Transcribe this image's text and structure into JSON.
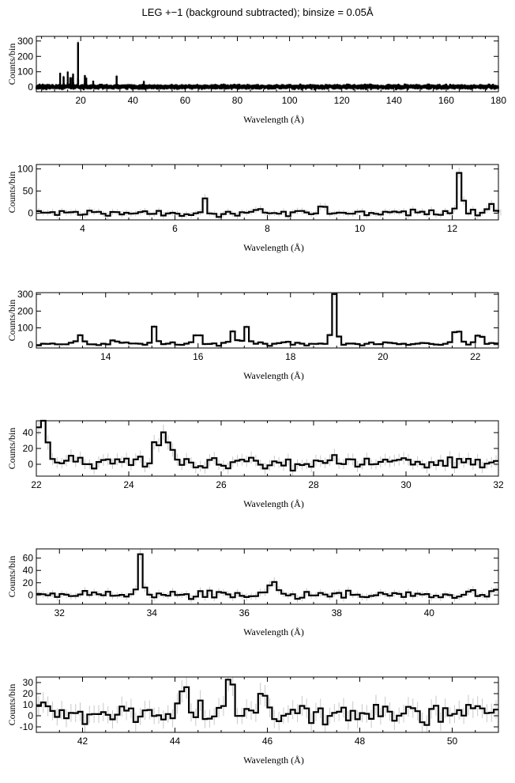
{
  "title": "LEG +−1 (background subtracted); binsize = 0.05Å",
  "chart_data": [
    {
      "type": "line",
      "title": "",
      "xlabel": "Wavelength (Å)",
      "ylabel": "Counts/bin",
      "xlim": [
        3,
        180
      ],
      "ylim": [
        -30,
        330
      ],
      "xticks": [
        20,
        40,
        60,
        80,
        100,
        120,
        140,
        160,
        180
      ],
      "yticks": [
        0,
        100,
        200,
        300
      ],
      "binsize": 0.05,
      "baseline": 2,
      "noise": 7,
      "peaks": [
        [
          12.13,
          85
        ],
        [
          13.45,
          60
        ],
        [
          15.02,
          95
        ],
        [
          16.0,
          55
        ],
        [
          16.78,
          55
        ],
        [
          17.07,
          90
        ],
        [
          18.97,
          290
        ],
        [
          21.6,
          70
        ],
        [
          22.1,
          45
        ],
        [
          24.78,
          28
        ],
        [
          33.75,
          60
        ],
        [
          44.2,
          30
        ]
      ],
      "series": [
        {
          "values_note": ""
        }
      ]
    },
    {
      "type": "line",
      "title": "",
      "xlabel": "Wavelength (Å)",
      "ylabel": "Counts/bin",
      "xlim": [
        3,
        13
      ],
      "ylim": [
        -15,
        110
      ],
      "xticks": [
        4,
        6,
        8,
        10,
        12
      ],
      "yticks": [
        0,
        50,
        100
      ],
      "binsize": 0.1,
      "baseline": 1,
      "noise": 5,
      "peaks": [
        [
          6.65,
          25
        ],
        [
          9.2,
          14
        ],
        [
          12.13,
          88
        ],
        [
          12.25,
          20
        ],
        [
          12.85,
          20
        ]
      ]
    },
    {
      "type": "line",
      "title": "",
      "xlabel": "Wavelength (Å)",
      "ylabel": "Counts/bin",
      "xlim": [
        12.5,
        22.5
      ],
      "ylim": [
        -20,
        310
      ],
      "xticks": [
        14,
        16,
        18,
        20,
        22
      ],
      "yticks": [
        0,
        100,
        200,
        300
      ],
      "binsize": 0.1,
      "baseline": 5,
      "noise": 6,
      "peaks": [
        [
          13.45,
          55
        ],
        [
          14.2,
          20
        ],
        [
          15.02,
          100
        ],
        [
          16.0,
          50
        ],
        [
          16.78,
          65
        ],
        [
          17.07,
          100
        ],
        [
          18.97,
          300
        ],
        [
          21.6,
          75
        ],
        [
          22.1,
          45
        ]
      ]
    },
    {
      "type": "line",
      "title": "",
      "xlabel": "Wavelength (Å)",
      "ylabel": "Counts/bin",
      "xlim": [
        22,
        32
      ],
      "ylim": [
        -15,
        55
      ],
      "xticks": [
        22,
        24,
        26,
        28,
        30,
        32
      ],
      "yticks": [
        0,
        20,
        40
      ],
      "binsize": 0.1,
      "baseline": 2,
      "noise": 5,
      "peaks": [
        [
          22.1,
          45
        ],
        [
          22.2,
          20
        ],
        [
          24.6,
          20
        ],
        [
          24.78,
          30
        ],
        [
          24.9,
          18
        ],
        [
          28.45,
          14
        ]
      ]
    },
    {
      "type": "line",
      "title": "",
      "xlabel": "Wavelength (Å)",
      "ylabel": "Counts/bin",
      "xlim": [
        31.5,
        41.5
      ],
      "ylim": [
        -15,
        75
      ],
      "xticks": [
        32,
        34,
        36,
        38,
        40
      ],
      "yticks": [
        0,
        20,
        40,
        60
      ],
      "binsize": 0.1,
      "baseline": 1,
      "noise": 4,
      "peaks": [
        [
          33.75,
          60
        ],
        [
          36.6,
          18
        ],
        [
          41.5,
          12
        ]
      ]
    },
    {
      "type": "line",
      "title": "",
      "xlabel": "Wavelength (Å)",
      "ylabel": "Counts/bin",
      "xlim": [
        41,
        51
      ],
      "ylim": [
        -15,
        35
      ],
      "xticks": [
        42,
        44,
        46,
        48,
        50
      ],
      "yticks": [
        -10,
        0,
        10,
        20,
        30
      ],
      "binsize": 0.1,
      "baseline": 2,
      "noise": 6,
      "peaks": [
        [
          44.2,
          28
        ],
        [
          45.2,
          22
        ],
        [
          45.9,
          15
        ]
      ]
    }
  ]
}
